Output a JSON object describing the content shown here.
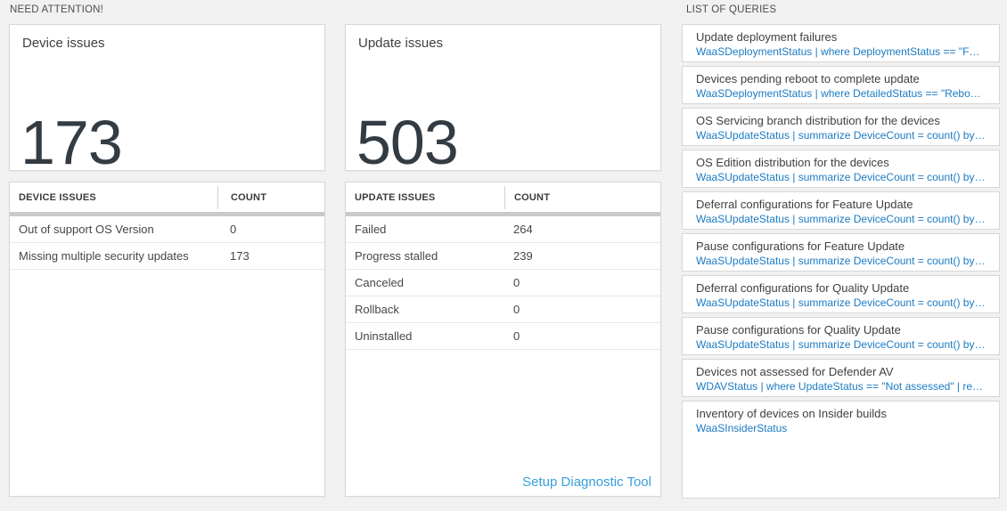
{
  "sections": {
    "need_attention_label": "NEED ATTENTION!",
    "list_of_queries_label": "LIST OF QUERIES"
  },
  "device_card": {
    "title": "Device issues",
    "count": "173",
    "table": {
      "headers": [
        "DEVICE ISSUES",
        "COUNT"
      ],
      "rows": [
        [
          "Out of support OS Version",
          "0"
        ],
        [
          "Missing multiple security updates",
          "173"
        ]
      ]
    }
  },
  "update_card": {
    "title": "Update issues",
    "count": "503",
    "table": {
      "headers": [
        "UPDATE ISSUES",
        "COUNT"
      ],
      "rows": [
        [
          "Failed",
          "264"
        ],
        [
          "Progress stalled",
          "239"
        ],
        [
          "Canceled",
          "0"
        ],
        [
          "Rollback",
          "0"
        ],
        [
          "Uninstalled",
          "0"
        ]
      ]
    },
    "link_label": "Setup Diagnostic Tool"
  },
  "queries": {
    "items": [
      {
        "title": "Update deployment failures",
        "query": "WaaSDeploymentStatus | where DeploymentStatus == \"Failed\" |..."
      },
      {
        "title": "Devices pending reboot to complete update",
        "query": "WaaSDeploymentStatus | where DetailedStatus == \"Reboot pend..."
      },
      {
        "title": "OS Servicing branch distribution for the devices",
        "query": "WaaSUpdateStatus | summarize DeviceCount = count() by OSSer..."
      },
      {
        "title": "OS Edition distribution for the devices",
        "query": "WaaSUpdateStatus | summarize DeviceCount = count() by OSEdit..."
      },
      {
        "title": "Deferral configurations for Feature Update",
        "query": "WaaSUpdateStatus | summarize DeviceCount = count() by Featur..."
      },
      {
        "title": "Pause configurations for Feature Update",
        "query": "WaaSUpdateStatus | summarize DeviceCount = count() by Featur..."
      },
      {
        "title": "Deferral configurations for Quality Update",
        "query": "WaaSUpdateStatus | summarize DeviceCount = count() by Qualit..."
      },
      {
        "title": "Pause configurations for Quality Update",
        "query": "WaaSUpdateStatus | summarize DeviceCount = count() by Qualit..."
      },
      {
        "title": "Devices not assessed for Defender AV",
        "query": "WDAVStatus | where UpdateStatus == \"Not assessed\" | render ta..."
      },
      {
        "title": "Inventory of devices on Insider builds",
        "query": "WaaSInsiderStatus"
      }
    ]
  },
  "colors": {
    "background": "#f1f1f1",
    "panel_border": "#d7d7d7",
    "big_number": "#333b43",
    "query_link_blue": "#1b7bc3",
    "setup_link_blue": "#38a0da",
    "thick_bar": "#c9c9c9"
  }
}
